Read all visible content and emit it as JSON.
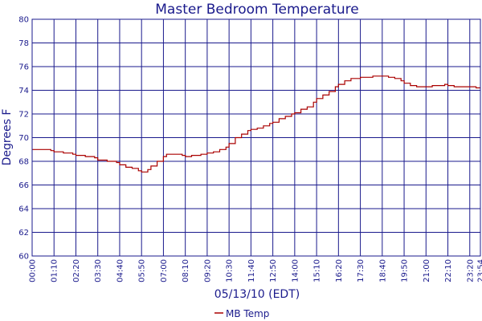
{
  "chart_data": {
    "type": "line",
    "title": "Master Bedroom Temperature",
    "xlabel": "05/13/10 (EDT)",
    "ylabel": "Degrees F",
    "ylim": [
      60,
      80
    ],
    "y_ticks": [
      "60",
      "62",
      "64",
      "66",
      "68",
      "70",
      "72",
      "74",
      "76",
      "78",
      "80"
    ],
    "x_ticks": [
      "00:00",
      "01:10",
      "02:20",
      "03:30",
      "04:40",
      "05:50",
      "07:00",
      "08:10",
      "09:20",
      "10:30",
      "11:40",
      "12:50",
      "14:00",
      "15:10",
      "16:20",
      "17:30",
      "18:40",
      "19:50",
      "21:00",
      "22:10",
      "23:20",
      "23:54"
    ],
    "grid": true,
    "legend_position": "bottom-center",
    "colors": {
      "axis": "#1a1a8c",
      "grid": "#1a1a8c",
      "series": "#aa0000"
    },
    "series": [
      {
        "name": "MB Temp",
        "x": [
          "00:00",
          "00:30",
          "01:00",
          "01:10",
          "01:40",
          "02:10",
          "02:20",
          "02:50",
          "03:20",
          "03:30",
          "04:00",
          "04:30",
          "04:40",
          "05:00",
          "05:20",
          "05:40",
          "05:50",
          "06:00",
          "06:10",
          "06:20",
          "06:40",
          "07:00",
          "07:10",
          "07:30",
          "08:00",
          "08:10",
          "08:30",
          "09:00",
          "09:20",
          "09:40",
          "10:00",
          "10:20",
          "10:30",
          "10:50",
          "11:10",
          "11:30",
          "11:40",
          "12:00",
          "12:20",
          "12:40",
          "12:50",
          "13:10",
          "13:30",
          "13:50",
          "14:00",
          "14:20",
          "14:40",
          "15:00",
          "15:10",
          "15:30",
          "15:50",
          "16:10",
          "16:20",
          "16:40",
          "17:00",
          "17:20",
          "17:30",
          "17:50",
          "18:10",
          "18:30",
          "18:40",
          "19:00",
          "19:20",
          "19:40",
          "19:50",
          "20:10",
          "20:30",
          "20:50",
          "21:00",
          "21:20",
          "21:40",
          "22:00",
          "22:10",
          "22:30",
          "22:50",
          "23:10",
          "23:20",
          "23:40",
          "23:54"
        ],
        "values": [
          69.0,
          69.0,
          68.9,
          68.8,
          68.7,
          68.6,
          68.5,
          68.4,
          68.3,
          68.1,
          68.0,
          67.9,
          67.7,
          67.5,
          67.4,
          67.2,
          67.1,
          67.1,
          67.3,
          67.6,
          68.0,
          68.4,
          68.6,
          68.6,
          68.5,
          68.4,
          68.5,
          68.6,
          68.7,
          68.8,
          69.0,
          69.2,
          69.5,
          70.0,
          70.3,
          70.6,
          70.7,
          70.8,
          71.0,
          71.2,
          71.3,
          71.6,
          71.8,
          72.0,
          72.1,
          72.4,
          72.6,
          73.0,
          73.3,
          73.6,
          73.9,
          74.3,
          74.5,
          74.8,
          75.0,
          75.0,
          75.1,
          75.1,
          75.2,
          75.2,
          75.2,
          75.1,
          75.0,
          74.8,
          74.6,
          74.4,
          74.3,
          74.3,
          74.3,
          74.4,
          74.4,
          74.5,
          74.4,
          74.3,
          74.3,
          74.3,
          74.3,
          74.2,
          74.2
        ]
      }
    ]
  }
}
